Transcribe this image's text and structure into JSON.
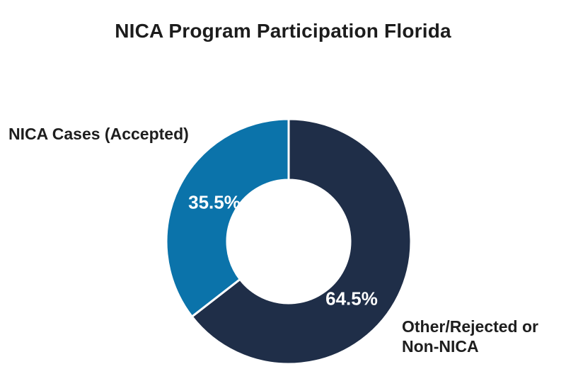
{
  "chart_data": {
    "type": "pie",
    "donut": true,
    "title": "NICA Program Participation Florida",
    "start_angle": "top",
    "direction": "clockwise",
    "inner_radius_ratio": 0.5,
    "segments": [
      {
        "label": "Other/Rejected or Non-NICA",
        "value": 64.5,
        "display": "64.5%",
        "color": "#1F2E48"
      },
      {
        "label": "NICA Cases (Accepted)",
        "value": 35.5,
        "display": "35.5%",
        "color": "#0B73AA"
      }
    ],
    "separator_color": "#FFFFFF",
    "legend_position": "none",
    "data_labels": "inside-white"
  },
  "title": "NICA Program Participation Florida",
  "labels": {
    "accepted": "NICA Cases (Accepted)",
    "other_line1": "Other/Rejected or",
    "other_line2": "Non-NICA"
  },
  "values": {
    "accepted_pct": "35.5%",
    "other_pct": "64.5%"
  },
  "colors": {
    "accepted": "#0B73AA",
    "other": "#1F2E48",
    "background": "#FFFFFF",
    "text": "#1C1C1C",
    "pct_text": "#FFFFFF"
  }
}
